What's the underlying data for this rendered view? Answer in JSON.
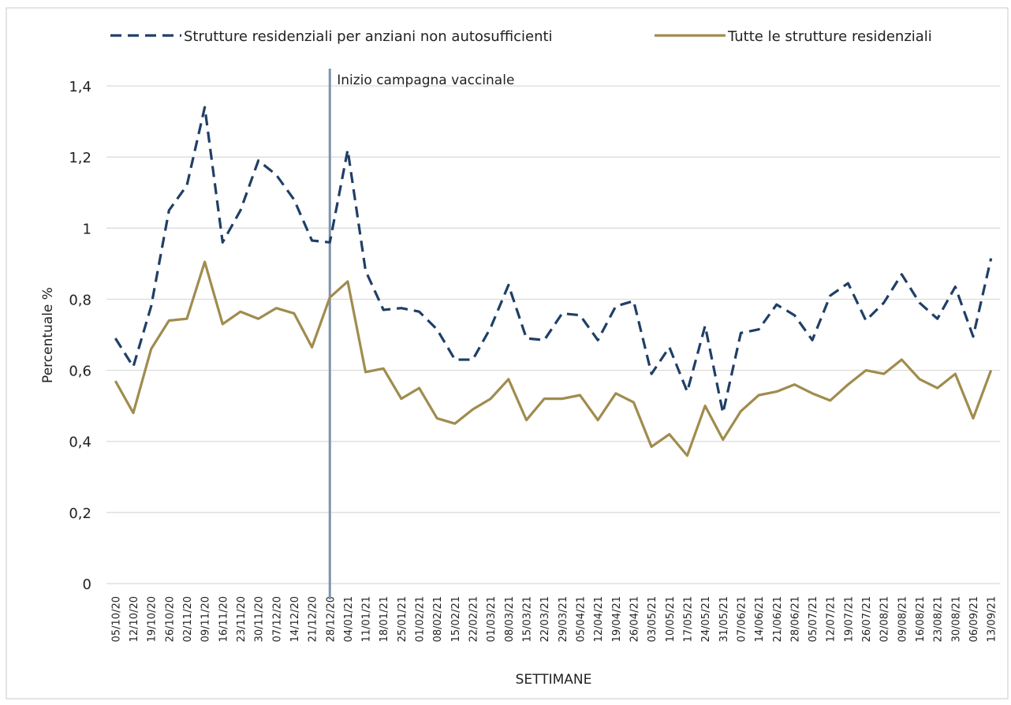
{
  "chart_data": {
    "type": "line",
    "y_label": "Percentuale %",
    "x_label": "SETTIMANE",
    "categories": [
      "05/10/20",
      "12/10/20",
      "19/10/20",
      "26/10/20",
      "02/11/20",
      "09/11/20",
      "16/11/20",
      "23/11/20",
      "30/11/20",
      "07/12/20",
      "14/12/20",
      "21/12/20",
      "28/12/20",
      "04/01/21",
      "11/01/21",
      "18/01/21",
      "25/01/21",
      "01/02/21",
      "08/02/21",
      "15/02/21",
      "22/02/21",
      "01/03/21",
      "08/03/21",
      "15/03/21",
      "22/03/21",
      "29/03/21",
      "05/04/21",
      "12/04/21",
      "19/04/21",
      "26/04/21",
      "03/05/21",
      "10/05/21",
      "17/05/21",
      "24/05/21",
      "31/05/21",
      "07/06/21",
      "14/06/21",
      "21/06/21",
      "28/06/21",
      "05/07/21",
      "12/07/21",
      "19/07/21",
      "26/07/21",
      "02/08/21",
      "09/08/21",
      "16/08/21",
      "23/08/21",
      "30/08/21",
      "06/09/21",
      "13/09/21"
    ],
    "series": [
      {
        "name": "Strutture residenziali per anziani non autosufficienti",
        "color": "#1f3f66",
        "dashed": true,
        "values": [
          0.69,
          0.61,
          0.78,
          1.05,
          1.12,
          1.34,
          0.96,
          1.05,
          1.19,
          1.15,
          1.08,
          0.965,
          0.96,
          1.22,
          0.88,
          0.77,
          0.775,
          0.765,
          0.715,
          0.63,
          0.63,
          0.72,
          0.84,
          0.69,
          0.685,
          0.76,
          0.755,
          0.685,
          0.78,
          0.795,
          0.59,
          0.665,
          0.54,
          0.725,
          0.48,
          0.705,
          0.715,
          0.785,
          0.755,
          0.685,
          0.81,
          0.845,
          0.74,
          0.79,
          0.87,
          0.79,
          0.745,
          0.835,
          0.695,
          0.915
        ]
      },
      {
        "name": "Tutte le strutture residenziali",
        "color": "#a08c4e",
        "dashed": false,
        "values": [
          0.57,
          0.48,
          0.66,
          0.74,
          0.745,
          0.905,
          0.73,
          0.765,
          0.745,
          0.775,
          0.76,
          0.665,
          0.805,
          0.85,
          0.595,
          0.605,
          0.52,
          0.55,
          0.465,
          0.45,
          0.49,
          0.52,
          0.575,
          0.46,
          0.52,
          0.52,
          0.53,
          0.46,
          0.535,
          0.51,
          0.385,
          0.42,
          0.36,
          0.5,
          0.405,
          0.485,
          0.53,
          0.54,
          0.56,
          0.535,
          0.515,
          0.56,
          0.6,
          0.59,
          0.63,
          0.575,
          0.55,
          0.59,
          0.465,
          0.6
        ]
      }
    ],
    "annotation": {
      "text": "Inizio campagna vaccinale",
      "x": "28/12/20",
      "color": "#7f93ad"
    },
    "ylim": [
      0,
      1.4
    ],
    "yticks": [
      0,
      {
        "value": 0.2,
        "label": "0,2"
      },
      {
        "value": 0.4,
        "label": "0,4"
      },
      {
        "value": 0.6,
        "label": "0,6"
      },
      {
        "value": 0.8,
        "label": "0,8"
      },
      1,
      {
        "value": 1.2,
        "label": "1,2"
      },
      {
        "value": 1.4,
        "label": "1,4"
      }
    ],
    "grid": true
  }
}
